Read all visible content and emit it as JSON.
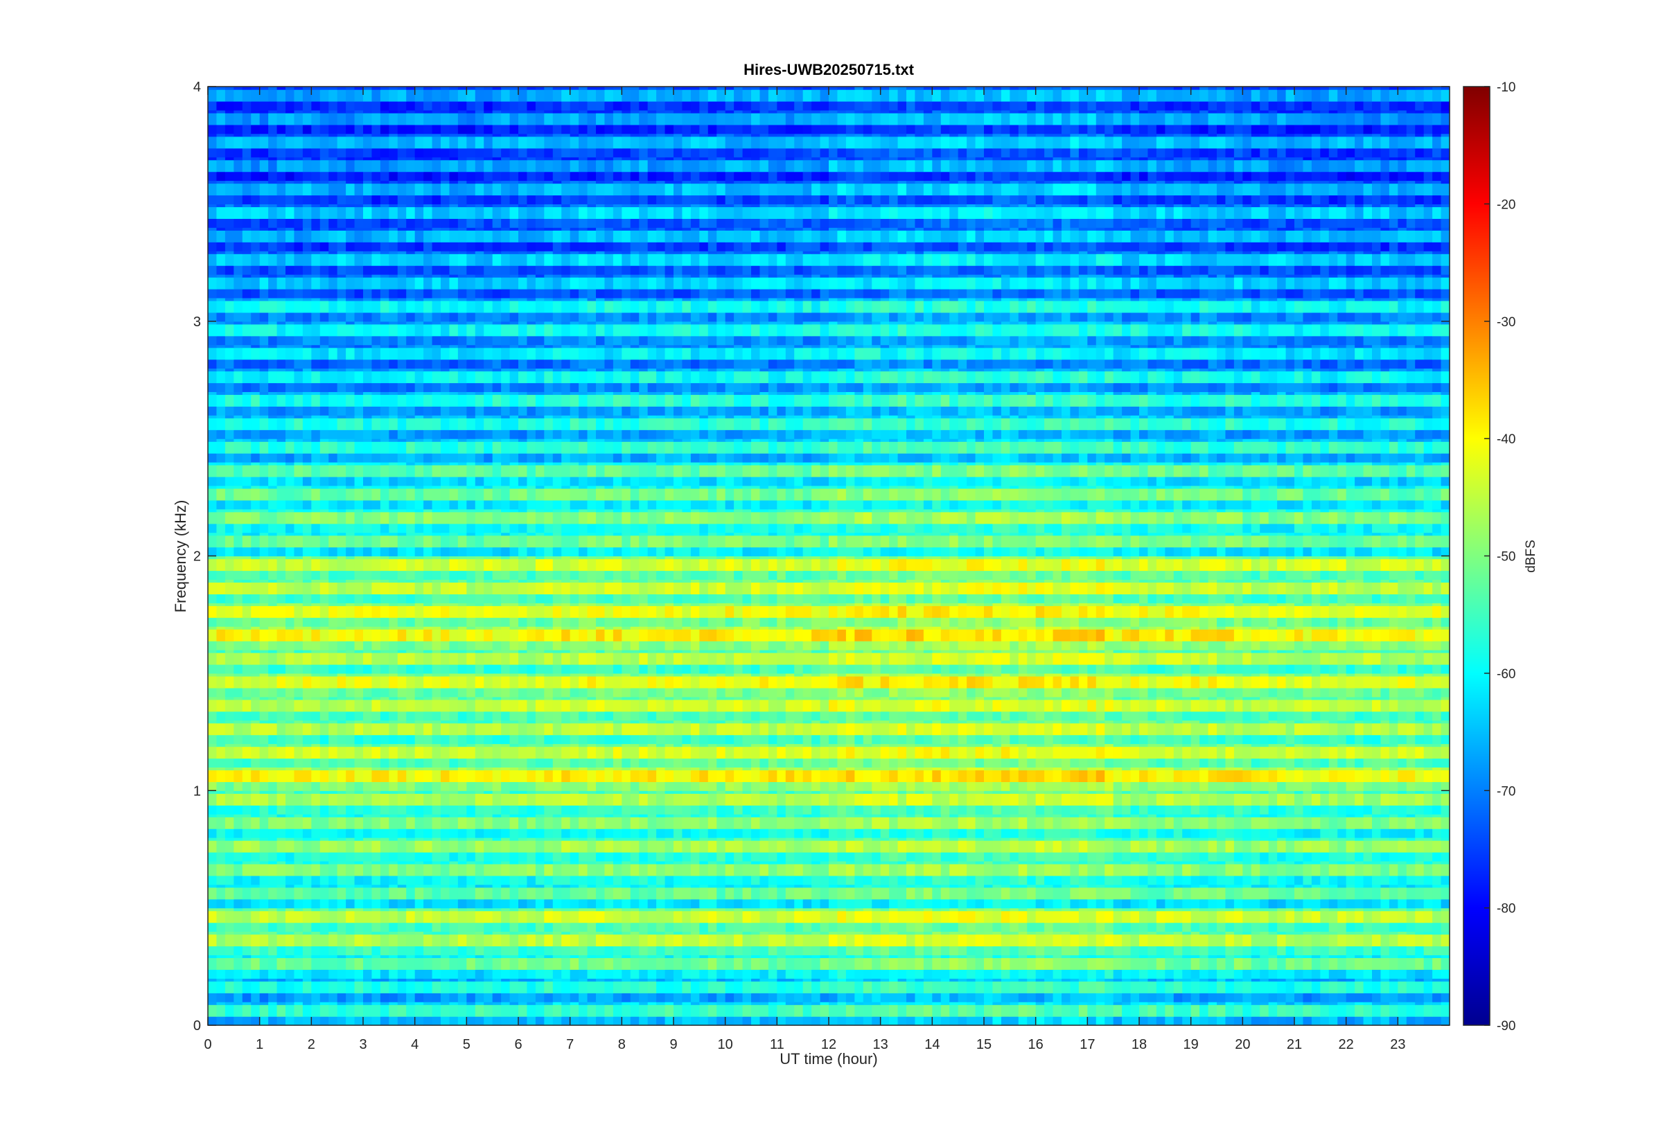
{
  "chart_data": {
    "type": "heatmap",
    "title": "Hires-UWB20250715.txt",
    "xlabel": "UT time (hour)",
    "ylabel": "Frequency (kHz)",
    "xlim": [
      0,
      24
    ],
    "ylim": [
      0,
      4
    ],
    "x_ticks": [
      0,
      1,
      2,
      3,
      4,
      5,
      6,
      7,
      8,
      9,
      10,
      11,
      12,
      13,
      14,
      15,
      16,
      17,
      18,
      19,
      20,
      21,
      22,
      23
    ],
    "y_ticks": [
      0,
      1,
      2,
      3,
      4
    ],
    "colormap": "jet",
    "colorbar": {
      "label": "dBFS",
      "range": [
        -90,
        -10
      ],
      "ticks": [
        -90,
        -80,
        -70,
        -60,
        -50,
        -40,
        -30,
        -20,
        -10
      ]
    },
    "frequency_bands_kHz": [
      0.05,
      0.15,
      0.25,
      0.35,
      0.45,
      0.55,
      0.65,
      0.75,
      0.85,
      0.95,
      1.05,
      1.15,
      1.25,
      1.35,
      1.45,
      1.55,
      1.65,
      1.75,
      1.85,
      1.95,
      2.05,
      2.15,
      2.25,
      2.35,
      2.45,
      2.55,
      2.65,
      2.75,
      2.85,
      2.95,
      3.05,
      3.15,
      3.25,
      3.35,
      3.45,
      3.55,
      3.65,
      3.75,
      3.85,
      3.95
    ],
    "band_level_dBFS": [
      -56,
      -58,
      -52,
      -46,
      -45,
      -53,
      -50,
      -48,
      -50,
      -47,
      -40,
      -44,
      -46,
      -45,
      -42,
      -46,
      -40,
      -42,
      -45,
      -44,
      -52,
      -50,
      -52,
      -53,
      -57,
      -58,
      -58,
      -60,
      -62,
      -60,
      -60,
      -64,
      -64,
      -66,
      -64,
      -66,
      -68,
      -66,
      -68,
      -67
    ],
    "time_profile": [
      {
        "start_h": 0,
        "end_h": 6.5,
        "offset_dB": 0
      },
      {
        "start_h": 6.5,
        "end_h": 12,
        "offset_dB": 1
      },
      {
        "start_h": 12,
        "end_h": 17.5,
        "offset_dB": 3
      },
      {
        "start_h": 17.5,
        "end_h": 20,
        "offset_dB": 1
      },
      {
        "start_h": 20,
        "end_h": 24,
        "offset_dB": 0
      }
    ]
  },
  "colors": {
    "background": "#ffffff",
    "axis": "#262626"
  }
}
